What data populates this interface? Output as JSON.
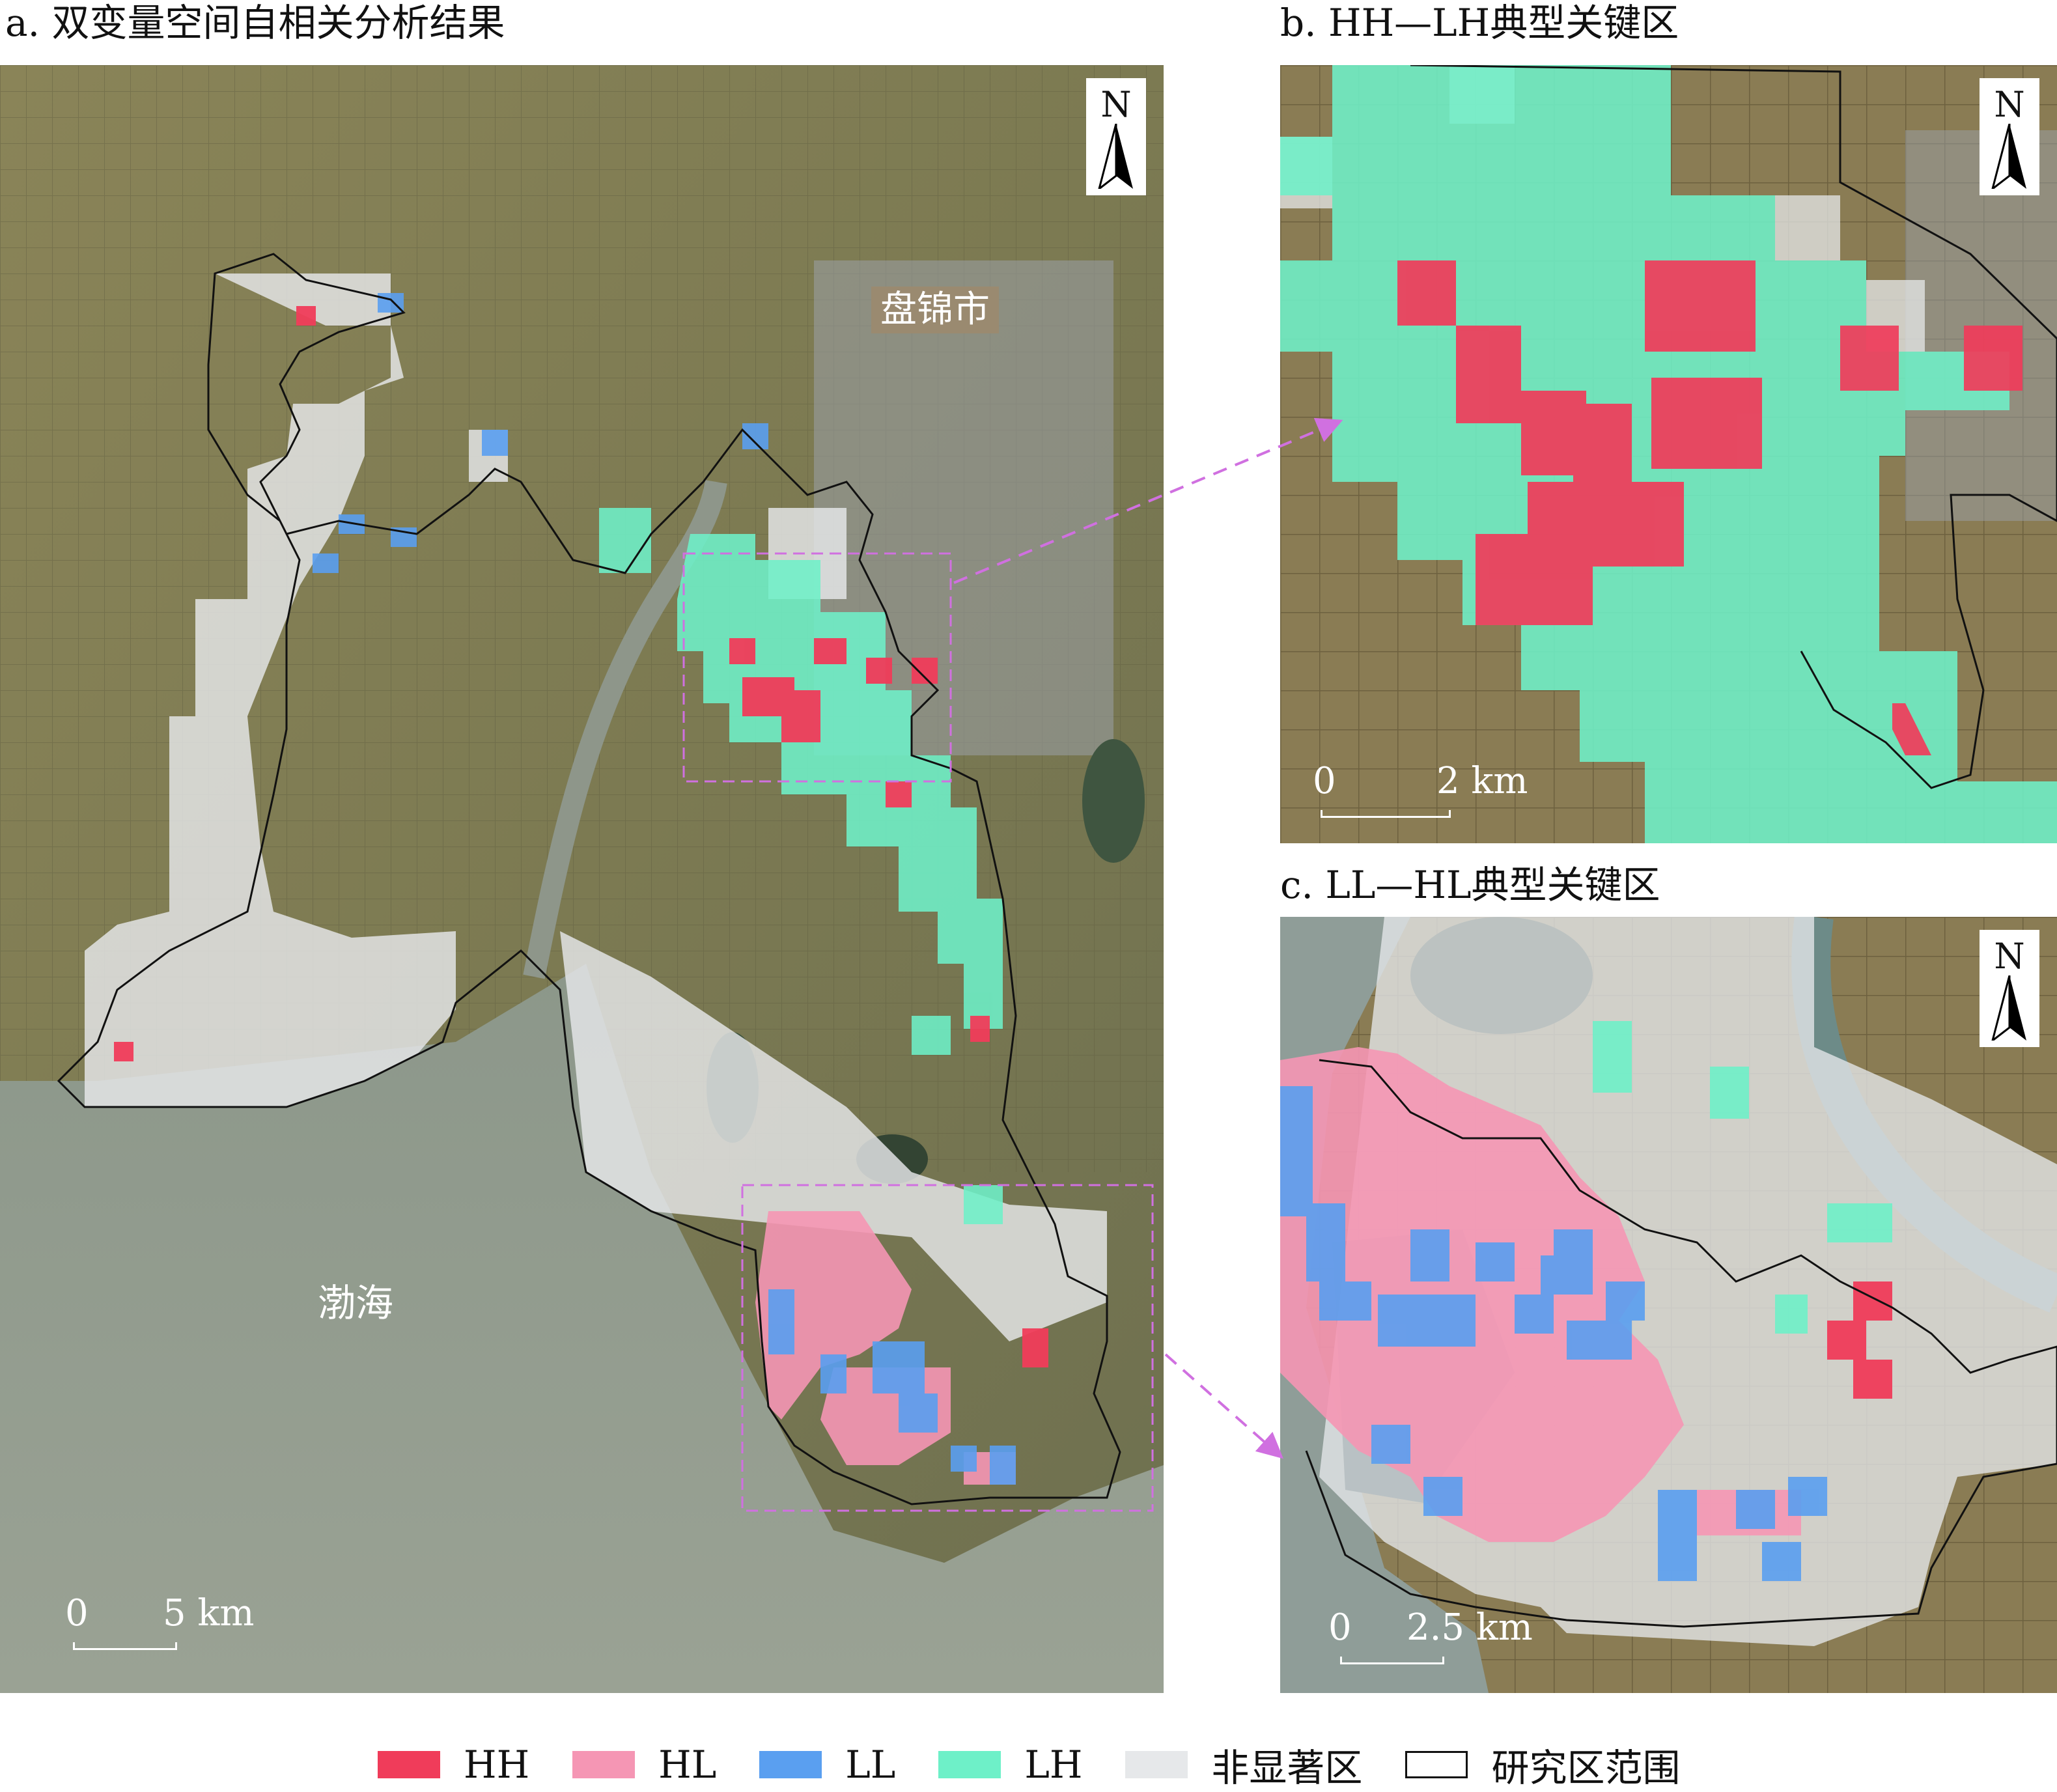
{
  "titles": {
    "a": "a. 双变量空间自相关分析结果",
    "b": "b. HH—LH典型关键区",
    "c": "c. LL—HL典型关键区"
  },
  "north_label": "N",
  "map_labels": {
    "city": "盘锦市",
    "sea": "渤海"
  },
  "scalebars": {
    "a": {
      "zero": "0",
      "end": "5 km"
    },
    "b": {
      "zero": "0",
      "end": "2 km"
    },
    "c": {
      "zero": "0",
      "end": "2.5 km"
    }
  },
  "colors": {
    "HH": "#f03c5a",
    "HL": "#f596b4",
    "LL": "#5a9ff0",
    "LH": "#6ef0c8",
    "non_significant": "#e6e8ea",
    "boundary": "#111111",
    "link_arrow": "#d070e0"
  },
  "legend": [
    {
      "key": "HH",
      "label": "HH"
    },
    {
      "key": "HL",
      "label": "HL"
    },
    {
      "key": "LL",
      "label": "LL"
    },
    {
      "key": "LH",
      "label": "LH"
    },
    {
      "key": "non_significant",
      "label": "非显著区"
    },
    {
      "key": "boundary",
      "label": "研究区范围"
    }
  ]
}
